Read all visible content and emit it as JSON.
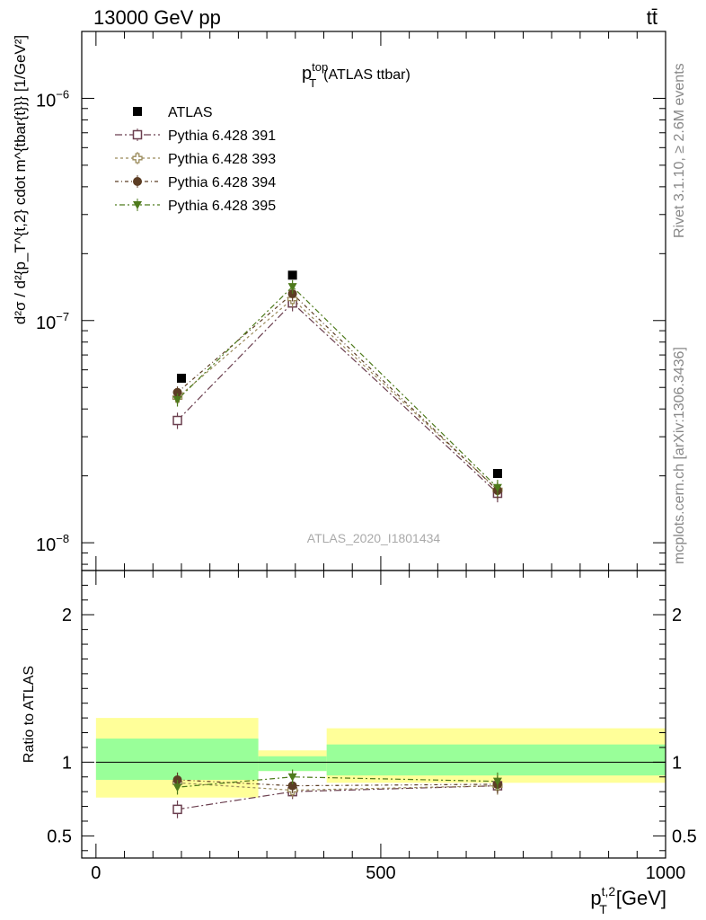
{
  "header": {
    "left": "13000 GeV pp",
    "right": "tt̄"
  },
  "side_labels": {
    "rivet": "Rivet 3.1.10, ≥ 2.6M events",
    "mcplots": "mcplots.cern.ch [arXiv:1306.3436]"
  },
  "chart_data": [
    {
      "type": "scatter",
      "title_main": "p",
      "title_sup": "top",
      "title_sub": "T",
      "title_rest": "(ATLAS ttbar)",
      "watermark": "ATLAS_2020_I1801434",
      "ylabel": "d²σ / d²{p_T^{t,2} cdot m^{tbar{t}}} [1/GeV²]",
      "yscale": "log",
      "ylim": [
        7.5e-09,
        2e-06
      ],
      "xlim": [
        -25,
        1000
      ],
      "yticks": [
        {
          "label": "10",
          "exp": "−8",
          "value": 1e-08
        },
        {
          "label": "10",
          "exp": "−7",
          "value": 1e-07
        },
        {
          "label": "10",
          "exp": "−6",
          "value": 1e-06
        }
      ],
      "legend_position": "top-left",
      "series": [
        {
          "name": "ATLAS",
          "color": "#000000",
          "marker": "square-filled",
          "x": [
            150,
            345,
            705
          ],
          "y": [
            5.5e-08,
            1.6e-07,
            2.05e-08
          ],
          "err_lo": [
            1e-09,
            5e-09,
            5e-10
          ],
          "err_hi": [
            1e-09,
            5e-09,
            5e-10
          ]
        },
        {
          "name": "Pythia 6.428 391",
          "color": "#6b3f4f",
          "marker": "square-open",
          "dash": "8,3,2,3",
          "x": [
            143,
            345,
            705
          ],
          "y": [
            3.55e-08,
            1.2e-07,
            1.67e-08
          ],
          "err_lo": [
            3e-09,
            1e-08,
            1.5e-09
          ],
          "err_hi": [
            3e-09,
            1e-08,
            1.5e-09
          ]
        },
        {
          "name": "Pythia 6.428 393",
          "color": "#9a8a5a",
          "marker": "cross-open",
          "dash": "3,3",
          "x": [
            143,
            345,
            705
          ],
          "y": [
            4.5e-08,
            1.25e-07,
            1.73e-08
          ],
          "err_lo": [
            3e-09,
            1e-08,
            1.5e-09
          ],
          "err_hi": [
            3e-09,
            1e-08,
            1.5e-09
          ]
        },
        {
          "name": "Pythia 6.428 394",
          "color": "#5c3d24",
          "marker": "circle-filled",
          "dash": "4,3,1,3",
          "x": [
            143,
            345,
            705
          ],
          "y": [
            4.75e-08,
            1.32e-07,
            1.72e-08
          ],
          "err_lo": [
            3e-09,
            1e-08,
            1.5e-09
          ],
          "err_hi": [
            3e-09,
            1e-08,
            1.5e-09
          ]
        },
        {
          "name": "Pythia 6.428 395",
          "color": "#4e7a1c",
          "marker": "triangle-down",
          "dash": "2,3,6,3",
          "x": [
            143,
            345,
            705
          ],
          "y": [
            4.4e-08,
            1.42e-07,
            1.77e-08
          ],
          "err_lo": [
            3e-09,
            1e-08,
            1.5e-09
          ],
          "err_hi": [
            3e-09,
            1e-08,
            1.5e-09
          ]
        }
      ]
    },
    {
      "type": "scatter",
      "ylabel": "Ratio to ATLAS",
      "xlabel_main": "p",
      "xlabel_sup": "t,2",
      "xlabel_sub": "T",
      "xlabel_rest": "[GeV]",
      "xlim": [
        -25,
        1000
      ],
      "ylim": [
        0.35,
        2.3
      ],
      "xticks": [
        {
          "label": "0",
          "value": 0
        },
        {
          "label": "500",
          "value": 500
        },
        {
          "label": "1000",
          "value": 1000
        }
      ],
      "yticks": [
        {
          "label": "0.5",
          "value": 0.5
        },
        {
          "label": "1",
          "value": 1
        },
        {
          "label": "2",
          "value": 2
        }
      ],
      "bands": [
        {
          "x0": 0,
          "x1": 285,
          "yellow": [
            0.76,
            1.3
          ],
          "green": [
            0.88,
            1.16
          ]
        },
        {
          "x0": 285,
          "x1": 405,
          "yellow": [
            0.94,
            1.08
          ],
          "green": [
            0.94,
            1.04
          ]
        },
        {
          "x0": 405,
          "x1": 1000,
          "yellow": [
            0.86,
            1.23
          ],
          "green": [
            0.91,
            1.12
          ]
        }
      ],
      "series": [
        {
          "name": "Pythia 6.428 391",
          "x": [
            143,
            345,
            705
          ],
          "y": [
            0.68,
            0.8,
            0.84
          ],
          "err": [
            0.06,
            0.05,
            0.06
          ]
        },
        {
          "name": "Pythia 6.428 393",
          "x": [
            143,
            345,
            705
          ],
          "y": [
            0.86,
            0.81,
            0.84
          ],
          "err": [
            0.05,
            0.05,
            0.06
          ]
        },
        {
          "name": "Pythia 6.428 394",
          "x": [
            143,
            345,
            705
          ],
          "y": [
            0.88,
            0.84,
            0.85
          ],
          "err": [
            0.05,
            0.05,
            0.06
          ]
        },
        {
          "name": "Pythia 6.428 395",
          "x": [
            143,
            345,
            705
          ],
          "y": [
            0.83,
            0.9,
            0.87
          ],
          "err": [
            0.05,
            0.05,
            0.06
          ]
        }
      ]
    }
  ]
}
